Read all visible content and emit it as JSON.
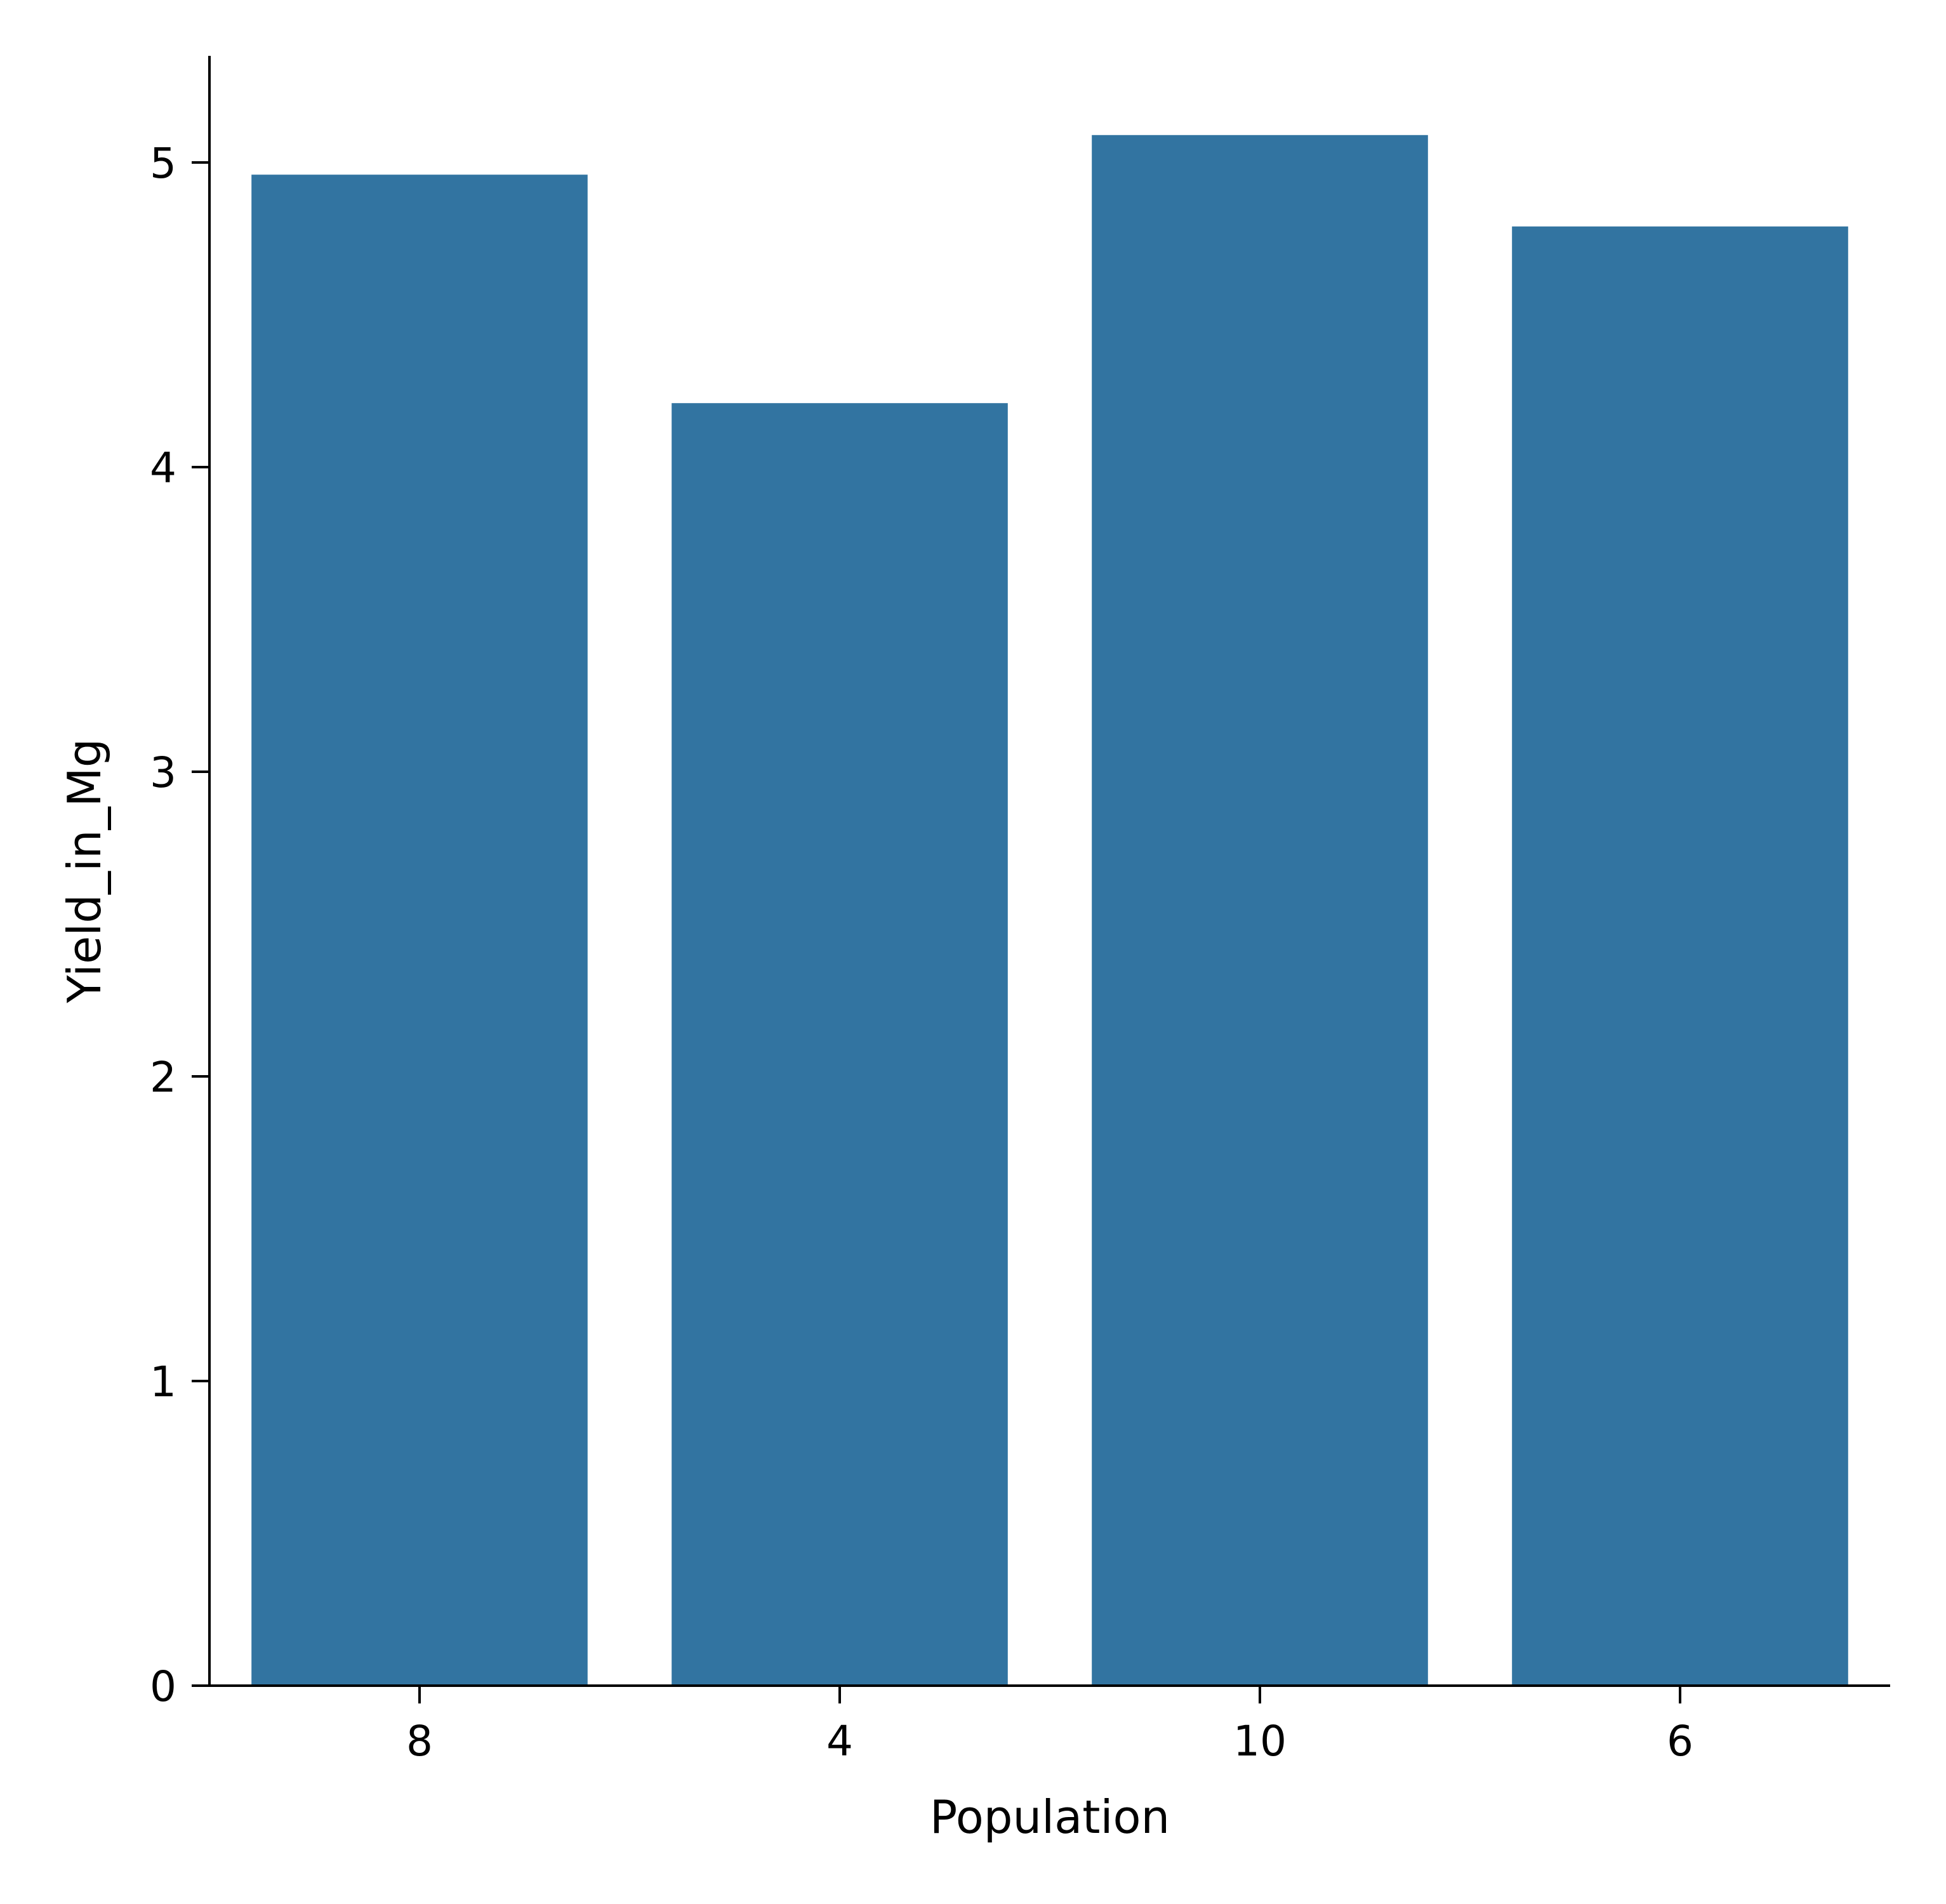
{
  "chart_data": {
    "type": "bar",
    "categories": [
      "8",
      "4",
      "10",
      "6"
    ],
    "values": [
      4.96,
      4.21,
      5.09,
      4.79
    ],
    "title": "",
    "xlabel": "Population",
    "ylabel": "Yield_in_Mg",
    "ylim": [
      0,
      5.35
    ],
    "yticks": [
      "0",
      "1",
      "2",
      "3",
      "4",
      "5"
    ],
    "grid": false,
    "legend": "none",
    "colors": {
      "bar": "#3274a1",
      "axis": "#000000",
      "text": "#000000",
      "background": "#ffffff"
    }
  }
}
